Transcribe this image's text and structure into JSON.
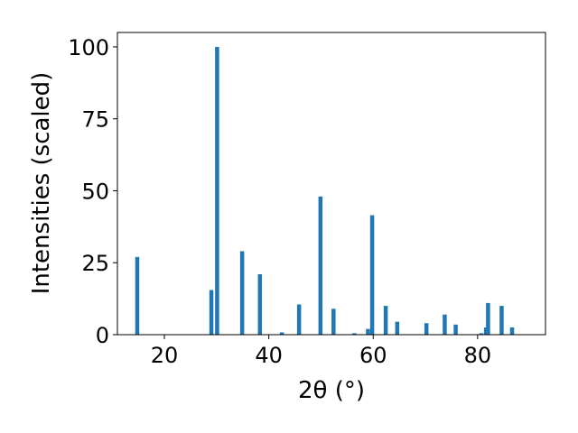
{
  "chart_data": {
    "type": "bar",
    "xlabel": "2θ (°)",
    "ylabel": "Intensities (scaled)",
    "xlim": [
      11,
      93
    ],
    "ylim": [
      0,
      105
    ],
    "xticks": [
      20,
      40,
      60,
      80
    ],
    "yticks": [
      0,
      25,
      50,
      75,
      100
    ],
    "xtick_labels": [
      "20",
      "40",
      "60",
      "80"
    ],
    "ytick_labels": [
      "0",
      "25",
      "50",
      "75",
      "100"
    ],
    "bar_color": "#1f77b4",
    "grid": false,
    "x": [
      14.8,
      29.0,
      30.1,
      34.9,
      38.3,
      42.5,
      45.8,
      49.9,
      52.4,
      56.4,
      59.0,
      59.8,
      62.4,
      64.6,
      70.2,
      73.7,
      75.8,
      80.7,
      81.6,
      82.0,
      84.6,
      86.6
    ],
    "values": [
      27,
      15.5,
      100,
      29,
      21,
      0.8,
      10.5,
      48,
      9,
      0.5,
      2,
      41.5,
      10,
      4.5,
      4,
      7,
      3.5,
      0.5,
      2.5,
      11,
      10,
      2.5
    ]
  }
}
